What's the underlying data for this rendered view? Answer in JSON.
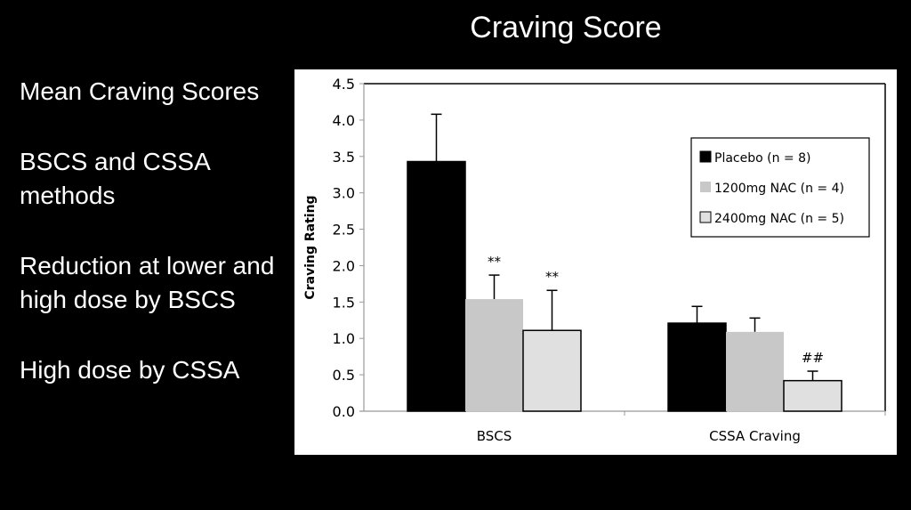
{
  "slide": {
    "title": "Craving Score",
    "bullets": [
      "Mean Craving Scores",
      "BSCS and CSSA methods",
      "Reduction at lower and high dose by BSCS",
      "High dose by CSSA"
    ]
  },
  "chart_data": {
    "type": "bar",
    "title": "",
    "xlabel": "",
    "ylabel": "Craving Rating",
    "ylim": [
      0,
      4.5
    ],
    "yticks": [
      "0.0",
      "0.5",
      "1.0",
      "1.5",
      "2.0",
      "2.5",
      "3.0",
      "3.5",
      "4.0",
      "4.5"
    ],
    "categories": [
      "BSCS",
      "CSSA Craving"
    ],
    "legend_position": "top-right",
    "series": [
      {
        "name": "Placebo (n = 8)",
        "color": "#000000",
        "values": [
          3.43,
          1.21
        ],
        "error": [
          0.65,
          0.23
        ],
        "annotations": [
          "",
          ""
        ]
      },
      {
        "name": "1200mg NAC (n = 4)",
        "color": "#c8c8c8",
        "values": [
          1.54,
          1.09
        ],
        "error": [
          0.33,
          0.19
        ],
        "annotations": [
          "**",
          ""
        ]
      },
      {
        "name": "2400mg NAC (n = 5)",
        "color": "#e0e0e0",
        "values": [
          1.11,
          0.42
        ],
        "error": [
          0.55,
          0.13
        ],
        "annotations": [
          "**",
          "##"
        ]
      }
    ]
  }
}
